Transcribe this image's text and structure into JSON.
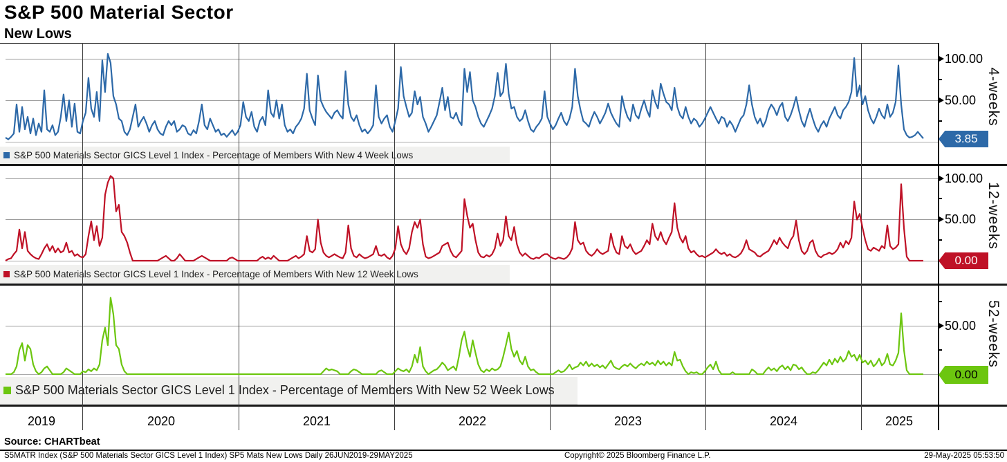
{
  "title": "S&P 500 Material Sector",
  "subtitle": "New Lows",
  "footer": {
    "source": "Source: CHARTbeat",
    "left": "S5MATR Index (S&P 500 Materials Sector GICS Level 1 Index) SP5 Mats New Lows  Daily 26JUN2019-29MAY2025",
    "center": "Copyright© 2025 Bloomberg Finance L.P.",
    "right": "29-May-2025 05:53:50"
  },
  "chart_data": {
    "type": "line",
    "x_start": "2019-06-26",
    "x_end": "2025-05-29",
    "sampling": "uniform ~weekly samples across x range",
    "y_unit": "percent of members",
    "grid": true,
    "x_tick_labels": [
      "2019",
      "2020",
      "2021",
      "2022",
      "2023",
      "2024",
      "2025"
    ],
    "panels": [
      {
        "id": "4wk",
        "axis_label": "4-weeks",
        "legend": "S&P 500 Materials Sector GICS Level 1 Index - Percentage of Members With New 4 Week Lows",
        "color": "#2d69a8",
        "last_value": "3.85",
        "last_value_num": 3.85,
        "ylim": [
          0,
          119
        ],
        "yticks": [
          50,
          100
        ],
        "ytick_labels": [
          "100.00",
          "50.00"
        ],
        "values": [
          5,
          3,
          6,
          10,
          45,
          12,
          42,
          15,
          30,
          10,
          28,
          8,
          22,
          12,
          62,
          15,
          12,
          20,
          8,
          12,
          30,
          57,
          25,
          50,
          18,
          46,
          12,
          10,
          25,
          35,
          77,
          40,
          30,
          60,
          25,
          98,
          60,
          106,
          95,
          55,
          45,
          28,
          25,
          12,
          8,
          15,
          30,
          45,
          18,
          25,
          30,
          22,
          12,
          20,
          25,
          15,
          10,
          8,
          18,
          25,
          20,
          25,
          12,
          15,
          20,
          18,
          10,
          8,
          14,
          10,
          25,
          45,
          20,
          15,
          28,
          20,
          12,
          15,
          8,
          10,
          6,
          10,
          14,
          8,
          12,
          20,
          48,
          30,
          25,
          36,
          18,
          12,
          25,
          30,
          20,
          62,
          35,
          30,
          50,
          28,
          45,
          20,
          12,
          15,
          10,
          18,
          22,
          28,
          40,
          82,
          38,
          28,
          20,
          80,
          50,
          42,
          36,
          32,
          28,
          35,
          38,
          32,
          28,
          85,
          45,
          30,
          25,
          32,
          20,
          12,
          15,
          10,
          14,
          20,
          68,
          30,
          22,
          28,
          32,
          18,
          12,
          25,
          40,
          90,
          55,
          42,
          30,
          35,
          61,
          45,
          54,
          30,
          22,
          12,
          18,
          25,
          32,
          48,
          65,
          38,
          54,
          30,
          28,
          35,
          25,
          20,
          88,
          60,
          84,
          50,
          42,
          30,
          22,
          18,
          25,
          32,
          40,
          55,
          83,
          55,
          60,
          94,
          58,
          40,
          42,
          30,
          25,
          28,
          38,
          25,
          15,
          12,
          18,
          22,
          28,
          61,
          30,
          22,
          15,
          20,
          28,
          35,
          25,
          20,
          28,
          42,
          88,
          55,
          38,
          25,
          22,
          18,
          28,
          36,
          30,
          22,
          28,
          35,
          46,
          35,
          28,
          22,
          18,
          55,
          40,
          30,
          25,
          45,
          32,
          28,
          40,
          50,
          38,
          30,
          62,
          48,
          40,
          70,
          58,
          48,
          45,
          38,
          65,
          42,
          32,
          28,
          42,
          30,
          22,
          28,
          25,
          18,
          22,
          28,
          35,
          42,
          35,
          28,
          22,
          30,
          28,
          18,
          25,
          20,
          12,
          20,
          28,
          32,
          45,
          68,
          45,
          30,
          22,
          28,
          18,
          25,
          38,
          45,
          40,
          32,
          42,
          47,
          30,
          25,
          32,
          42,
          54,
          38,
          25,
          18,
          30,
          40,
          28,
          18,
          12,
          20,
          25,
          18,
          28,
          35,
          42,
          32,
          28,
          38,
          42,
          48,
          60,
          101,
          55,
          68,
          45,
          55,
          38,
          28,
          22,
          30,
          40,
          32,
          28,
          45,
          30,
          35,
          48,
          92,
          45,
          15,
          8,
          5,
          6,
          8,
          12,
          8,
          4
        ]
      },
      {
        "id": "12wk",
        "axis_label": "12-weeks",
        "legend": "S&P 500 Materials Sector GICS Level 1 Index - Percentage of Members With New 12 Week Lows",
        "color": "#bf1126",
        "last_value": "0.00",
        "last_value_num": 0.0,
        "ylim": [
          0,
          115
        ],
        "yticks": [
          50,
          100
        ],
        "ytick_labels": [
          "100.00",
          "50.00"
        ],
        "values": [
          0,
          2,
          3,
          8,
          12,
          38,
          15,
          35,
          12,
          8,
          5,
          3,
          2,
          8,
          15,
          20,
          12,
          18,
          10,
          15,
          10,
          12,
          22,
          10,
          12,
          6,
          8,
          5,
          4,
          8,
          30,
          48,
          25,
          42,
          18,
          28,
          80,
          95,
          103,
          100,
          60,
          68,
          35,
          30,
          22,
          10,
          0,
          0,
          0,
          0,
          0,
          0,
          0,
          0,
          0,
          0,
          2,
          4,
          6,
          3,
          0,
          0,
          3,
          8,
          4,
          0,
          0,
          0,
          0,
          2,
          4,
          6,
          4,
          2,
          0,
          0,
          0,
          0,
          0,
          0,
          0,
          3,
          4,
          2,
          0,
          0,
          0,
          0,
          0,
          0,
          0,
          0,
          3,
          5,
          2,
          4,
          2,
          6,
          3,
          0,
          0,
          0,
          0,
          2,
          4,
          6,
          3,
          5,
          8,
          30,
          12,
          10,
          14,
          50,
          22,
          10,
          6,
          4,
          6,
          8,
          6,
          4,
          3,
          10,
          43,
          15,
          6,
          4,
          8,
          5,
          3,
          4,
          6,
          8,
          18,
          7,
          6,
          8,
          4,
          2,
          6,
          15,
          42,
          20,
          12,
          8,
          15,
          35,
          47,
          40,
          50,
          20,
          5,
          3,
          4,
          6,
          8,
          10,
          18,
          20,
          22,
          12,
          6,
          4,
          8,
          12,
          75,
          55,
          40,
          45,
          25,
          10,
          5,
          4,
          7,
          5,
          8,
          15,
          33,
          18,
          25,
          54,
          30,
          25,
          41,
          20,
          10,
          6,
          9,
          6,
          3,
          2,
          4,
          3,
          6,
          8,
          8,
          5,
          3,
          2,
          4,
          3,
          2,
          4,
          8,
          15,
          47,
          25,
          20,
          22,
          12,
          8,
          6,
          9,
          14,
          10,
          8,
          10,
          12,
          33,
          18,
          10,
          8,
          30,
          18,
          15,
          20,
          12,
          8,
          10,
          12,
          18,
          25,
          20,
          45,
          30,
          25,
          35,
          25,
          20,
          28,
          35,
          70,
          40,
          28,
          22,
          30,
          15,
          10,
          12,
          8,
          5,
          6,
          4,
          6,
          8,
          10,
          14,
          10,
          8,
          10,
          6,
          8,
          5,
          4,
          6,
          9,
          15,
          25,
          14,
          12,
          10,
          6,
          5,
          8,
          10,
          12,
          18,
          25,
          20,
          28,
          22,
          18,
          15,
          25,
          30,
          49,
          25,
          12,
          8,
          12,
          22,
          25,
          12,
          6,
          4,
          7,
          8,
          10,
          8,
          10,
          14,
          22,
          16,
          24,
          20,
          28,
          72,
          50,
          57,
          40,
          25,
          14,
          12,
          16,
          14,
          12,
          18,
          15,
          43,
          18,
          14,
          16,
          20,
          93,
          40,
          5,
          0,
          0,
          0,
          0,
          0,
          0
        ]
      },
      {
        "id": "52wk",
        "axis_label": "52-weeks",
        "legend": "S&P 500 Materials Sector GICS Level 1 Index - Percentage of Members With New 52 Week Lows",
        "color": "#6cc60f",
        "last_value": "0.00",
        "last_value_num": 0.0,
        "ylim": [
          0,
          90
        ],
        "yticks": [
          50
        ],
        "ytick_labels": [
          "50.00"
        ],
        "values": [
          0,
          0,
          0,
          2,
          8,
          25,
          32,
          14,
          30,
          26,
          10,
          3,
          0,
          2,
          6,
          8,
          4,
          0,
          0,
          0,
          0,
          2,
          6,
          4,
          2,
          0,
          0,
          0,
          3,
          2,
          5,
          3,
          6,
          4,
          10,
          35,
          48,
          30,
          79,
          62,
          30,
          26,
          10,
          3,
          0,
          0,
          0,
          0,
          0,
          0,
          0,
          0,
          0,
          0,
          0,
          0,
          0,
          0,
          0,
          0,
          0,
          0,
          0,
          0,
          0,
          0,
          0,
          0,
          0,
          0,
          0,
          0,
          0,
          0,
          0,
          0,
          0,
          0,
          0,
          0,
          0,
          0,
          0,
          0,
          0,
          0,
          0,
          0,
          0,
          0,
          0,
          0,
          0,
          0,
          0,
          0,
          0,
          0,
          0,
          0,
          0,
          0,
          0,
          0,
          0,
          0,
          0,
          0,
          0,
          0,
          0,
          0,
          0,
          0,
          0,
          3,
          6,
          4,
          5,
          4,
          3,
          0,
          0,
          0,
          0,
          3,
          5,
          4,
          2,
          0,
          0,
          0,
          0,
          0,
          0,
          3,
          4,
          2,
          0,
          0,
          0,
          3,
          6,
          4,
          3,
          5,
          2,
          8,
          20,
          12,
          28,
          8,
          3,
          0,
          2,
          4,
          5,
          8,
          12,
          9,
          4,
          6,
          8,
          4,
          18,
          35,
          44,
          28,
          18,
          35,
          22,
          10,
          4,
          2,
          5,
          3,
          6,
          4,
          5,
          8,
          18,
          30,
          43,
          26,
          18,
          24,
          14,
          10,
          18,
          8,
          4,
          5,
          2,
          0,
          0,
          0,
          0,
          0,
          0,
          2,
          4,
          2,
          3,
          6,
          10,
          5,
          7,
          8,
          12,
          9,
          13,
          8,
          11,
          8,
          10,
          7,
          9,
          6,
          10,
          14,
          8,
          6,
          5,
          8,
          10,
          8,
          11,
          8,
          6,
          9,
          11,
          9,
          13,
          10,
          12,
          9,
          14,
          10,
          13,
          9,
          12,
          9,
          23,
          14,
          15,
          8,
          3,
          0,
          2,
          1,
          2,
          0,
          0,
          3,
          7,
          10,
          5,
          13,
          4,
          0,
          0,
          0,
          0,
          2,
          0,
          0,
          0,
          0,
          0,
          0,
          5,
          3,
          0,
          0,
          0,
          4,
          7,
          4,
          6,
          3,
          7,
          9,
          5,
          8,
          4,
          10,
          9,
          5,
          7,
          3,
          0,
          0,
          2,
          1,
          4,
          8,
          12,
          9,
          15,
          10,
          16,
          12,
          18,
          13,
          16,
          24,
          18,
          20,
          14,
          20,
          12,
          14,
          10,
          14,
          8,
          11,
          16,
          9,
          12,
          21,
          10,
          9,
          14,
          22,
          63,
          25,
          4,
          0,
          0,
          0,
          0,
          0,
          0
        ]
      }
    ]
  }
}
